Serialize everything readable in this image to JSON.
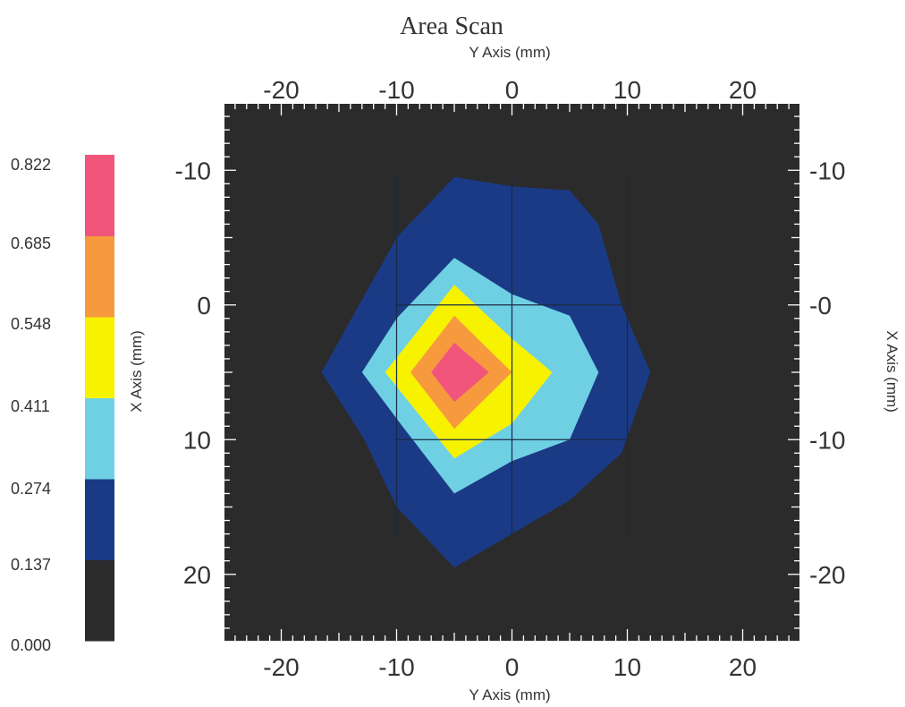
{
  "chart_data": {
    "type": "heatmap",
    "title": "Area Scan",
    "x_axis": {
      "label": "Y Axis (mm)",
      "range": [
        -25,
        25
      ],
      "ticks": [
        -20,
        -10,
        0,
        10,
        20
      ],
      "tick_labels": [
        "-20",
        "-10",
        "0",
        "10",
        "20"
      ]
    },
    "y_axis": {
      "label": "X Axis (mm)",
      "range": [
        -15,
        25
      ],
      "ticks": [
        -10,
        0,
        10,
        20
      ],
      "left_tick_labels": [
        "-10",
        "0",
        "10",
        "20"
      ],
      "right_tick_labels": [
        "-10",
        "-0",
        "-10",
        "-20"
      ]
    },
    "grid": true,
    "grid_lines_x": [
      -10,
      0,
      10
    ],
    "grid_lines_y": [
      0,
      10
    ],
    "colorbar": {
      "placement": "left",
      "levels": [
        "0.000",
        "0.137",
        "0.274",
        "0.411",
        "0.548",
        "0.685",
        "0.822"
      ],
      "colors": [
        "#2b2b2b",
        "#1b3a86",
        "#6fd0e4",
        "#f7f200",
        "#f79a3e",
        "#f2557c"
      ]
    },
    "background_color": "#2b2b2b",
    "contours": [
      {
        "level": 1,
        "color": "#1b3a86",
        "points": [
          [
            -16.5,
            5
          ],
          [
            -10,
            -5
          ],
          [
            -5,
            -9.5
          ],
          [
            0,
            -8.8
          ],
          [
            5,
            -8.5
          ],
          [
            7.5,
            -6
          ],
          [
            9.5,
            0
          ],
          [
            12,
            5
          ],
          [
            9.5,
            11
          ],
          [
            5,
            14.5
          ],
          [
            0,
            17
          ],
          [
            -5,
            19.5
          ],
          [
            -10,
            15
          ],
          [
            -12.8,
            10
          ]
        ]
      },
      {
        "level": 2,
        "color": "#6fd0e4",
        "points": [
          [
            -13,
            5
          ],
          [
            -10,
            1
          ],
          [
            -5,
            -3.5
          ],
          [
            0,
            -0.8
          ],
          [
            5,
            0.8
          ],
          [
            7.5,
            5
          ],
          [
            5,
            10
          ],
          [
            0,
            11.6
          ],
          [
            -5,
            14
          ],
          [
            -9.5,
            9
          ]
        ]
      },
      {
        "level": 3,
        "color": "#f7f200",
        "points": [
          [
            -11,
            5
          ],
          [
            -5,
            -1.5
          ],
          [
            0,
            2.5
          ],
          [
            3.5,
            5
          ],
          [
            0,
            8.8
          ],
          [
            -5,
            11.4
          ]
        ]
      },
      {
        "level": 4,
        "color": "#f79a3e",
        "points": [
          [
            -8.8,
            5
          ],
          [
            -5,
            0.8
          ],
          [
            0,
            5
          ],
          [
            -5,
            9.2
          ]
        ]
      },
      {
        "level": 5,
        "color": "#f2557c",
        "points": [
          [
            -7,
            5
          ],
          [
            -5,
            2.8
          ],
          [
            -2,
            5
          ],
          [
            -5,
            7.2
          ]
        ]
      }
    ]
  }
}
